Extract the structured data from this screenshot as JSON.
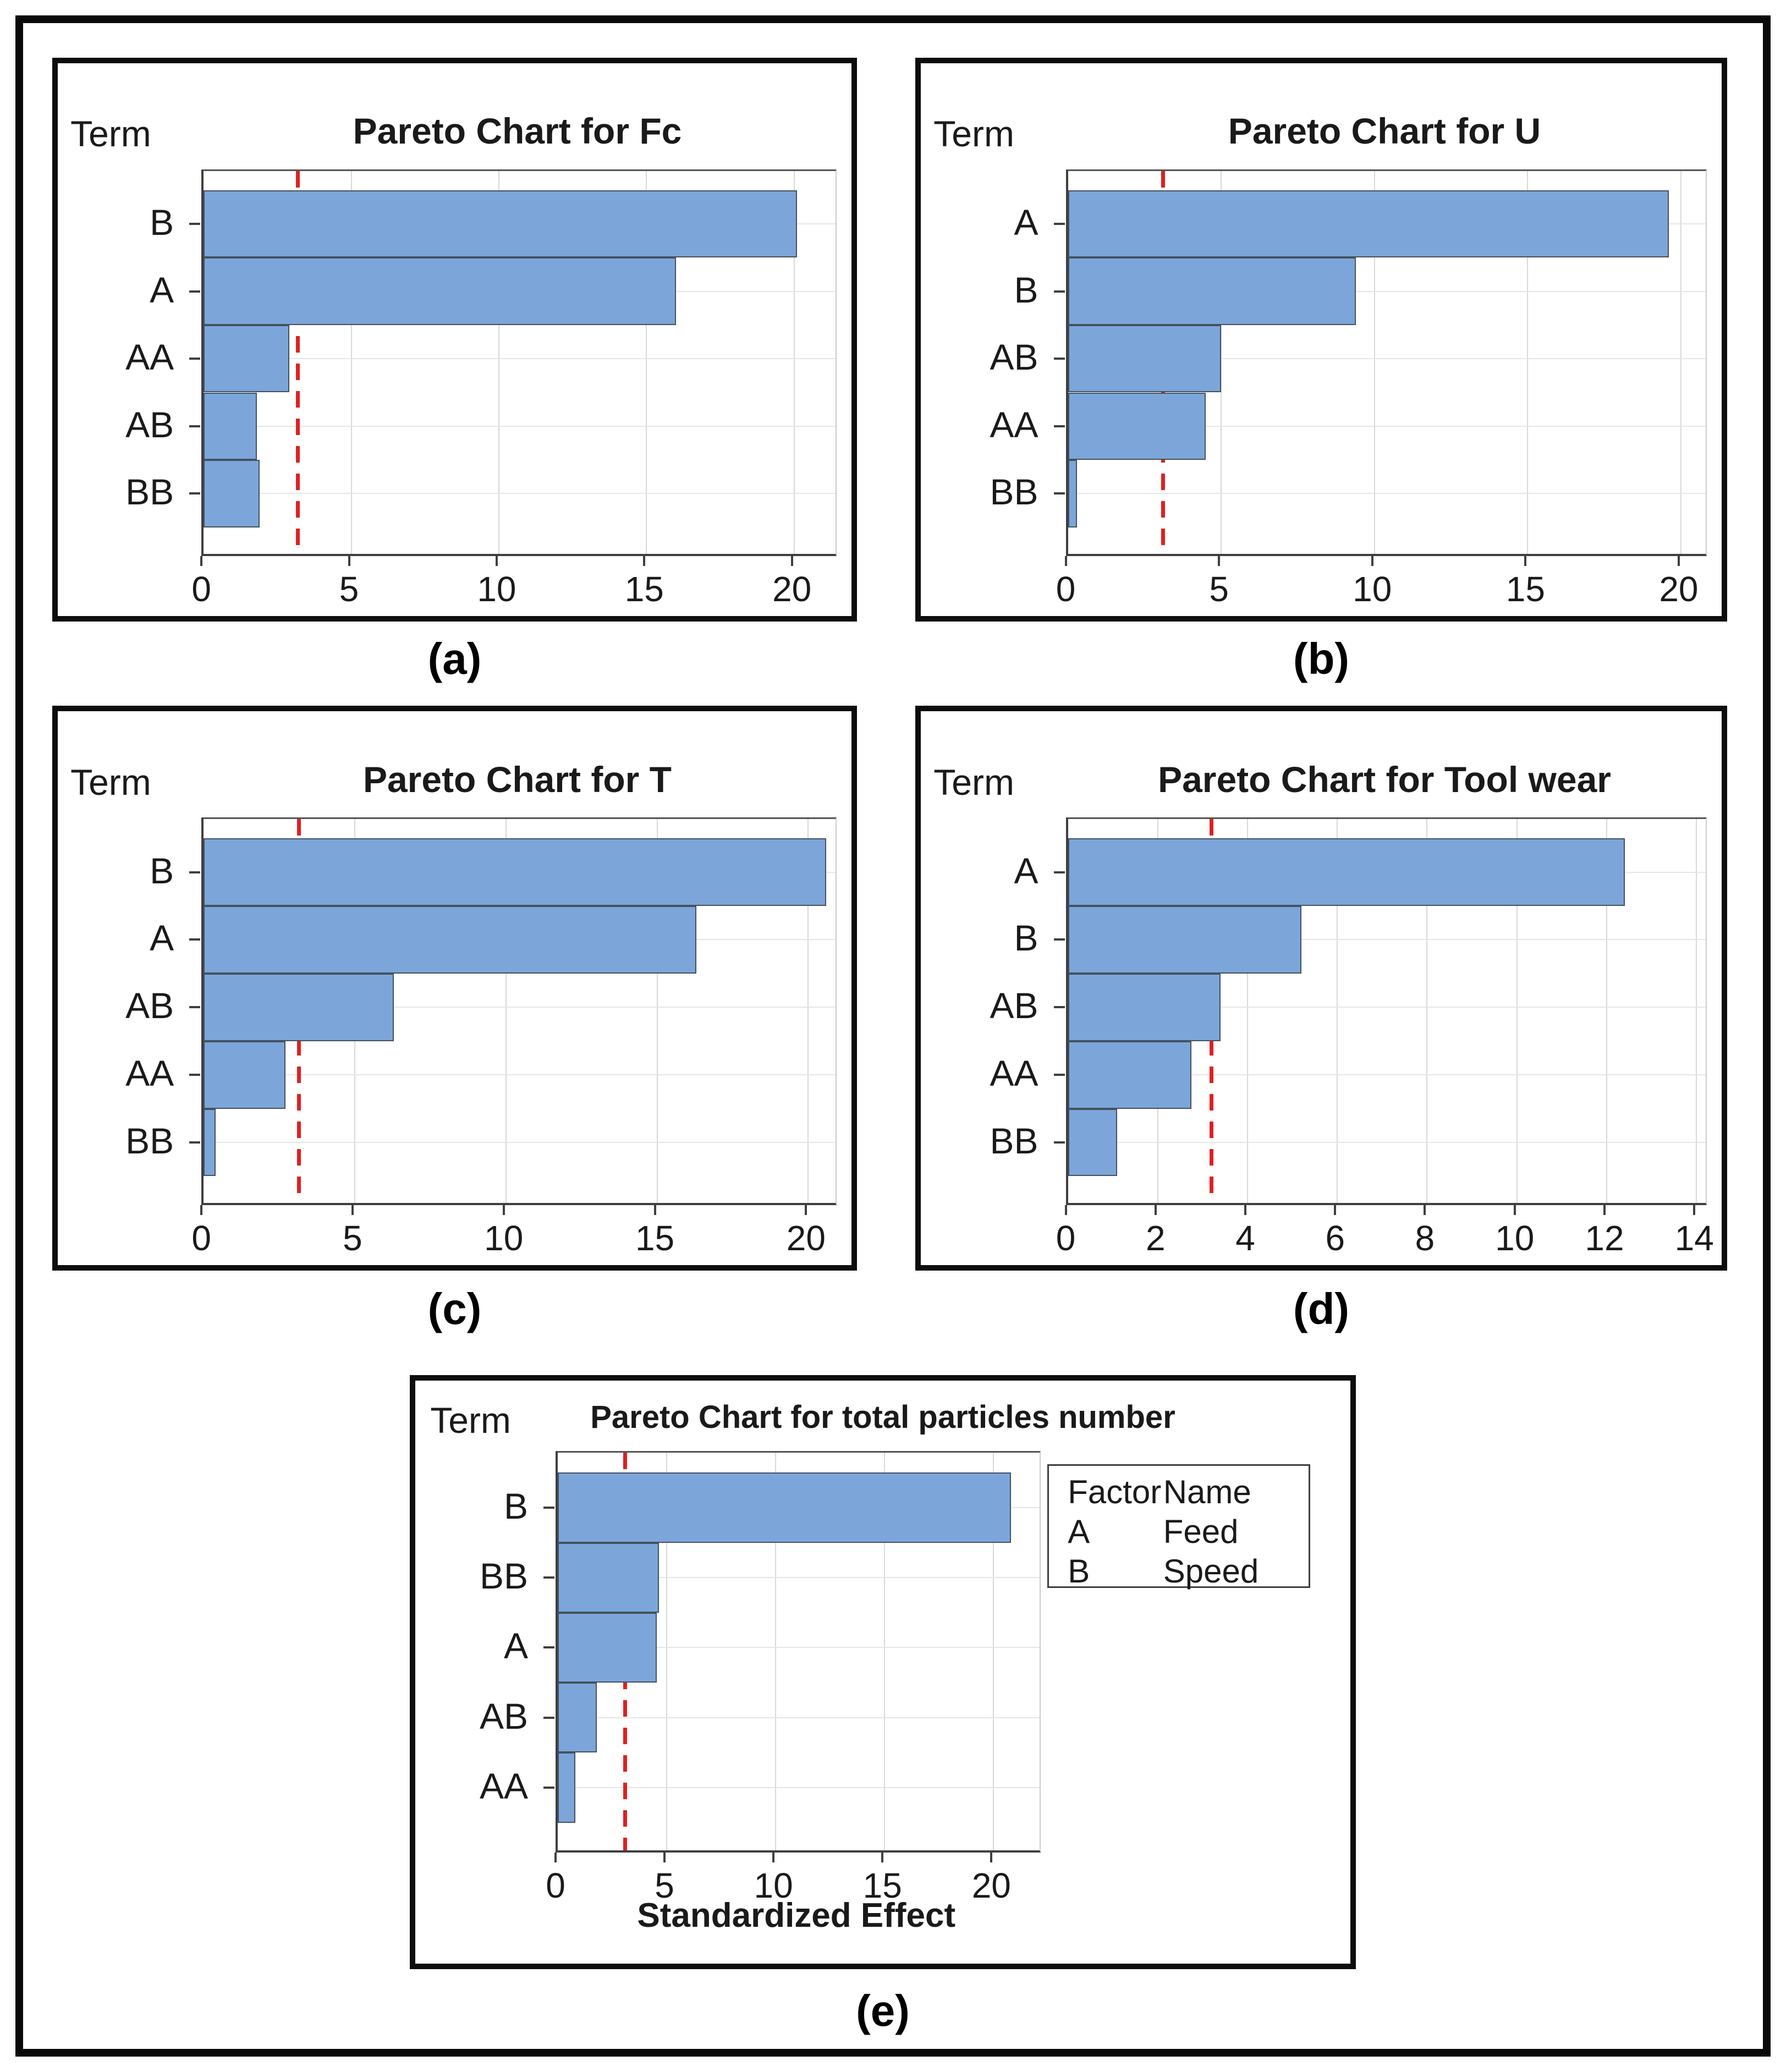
{
  "figure": {
    "description": "Five Pareto charts of standardized effects",
    "term_axis_label": "Term",
    "x_axis_title": "Standardized Effect"
  },
  "colors": {
    "bar_fill": "#7CA6DA",
    "bar_border": "#44515F",
    "reference_line": "#E02020",
    "gridline_vertical": "#D8D8D8",
    "gridline_horizontal": "#E6E6E6",
    "axis": "#3F3F3F",
    "plot_border_top": "#555555",
    "plot_border_right": "#CCCCCC",
    "frame": "#0D0D0D",
    "text": "#1A1A1A"
  },
  "chart_data": [
    {
      "type": "bar",
      "orientation": "horizontal",
      "caption": "(a)",
      "title": "Pareto Chart for Fc",
      "term_axis_label": "Term",
      "categories": [
        "B",
        "A",
        "AA",
        "AB",
        "BB"
      ],
      "values": [
        20.1,
        16.0,
        2.9,
        1.8,
        1.9
      ],
      "reference_line": 3.2,
      "x_ticks": [
        0,
        5,
        10,
        15,
        20
      ],
      "xlim": [
        0,
        21.4
      ],
      "xlabel": "",
      "grid": true
    },
    {
      "type": "bar",
      "orientation": "horizontal",
      "caption": "(b)",
      "title": "Pareto Chart for U",
      "term_axis_label": "Term",
      "categories": [
        "A",
        "B",
        "AB",
        "AA",
        "BB"
      ],
      "values": [
        19.6,
        9.4,
        5.0,
        4.5,
        0.3
      ],
      "reference_line": 3.1,
      "x_ticks": [
        0,
        5,
        10,
        15,
        20
      ],
      "xlim": [
        0,
        20.8
      ],
      "xlabel": "",
      "grid": true
    },
    {
      "type": "bar",
      "orientation": "horizontal",
      "caption": "(c)",
      "title": "Pareto Chart for T",
      "term_axis_label": "Term",
      "categories": [
        "B",
        "A",
        "AB",
        "AA",
        "BB"
      ],
      "values": [
        20.6,
        16.3,
        6.3,
        2.7,
        0.4
      ],
      "reference_line": 3.15,
      "x_ticks": [
        0,
        5,
        10,
        15,
        20
      ],
      "xlim": [
        0,
        20.9
      ],
      "xlabel": "",
      "grid": true
    },
    {
      "type": "bar",
      "orientation": "horizontal",
      "caption": "(d)",
      "title": "Pareto Chart for Tool wear",
      "term_axis_label": "Term",
      "categories": [
        "A",
        "B",
        "AB",
        "AA",
        "BB"
      ],
      "values": [
        12.4,
        5.2,
        3.4,
        2.75,
        1.1
      ],
      "reference_line": 3.2,
      "x_ticks": [
        0,
        2,
        4,
        6,
        8,
        10,
        12,
        14
      ],
      "xlim": [
        0,
        14.2
      ],
      "xlabel": "",
      "grid": true
    },
    {
      "type": "bar",
      "orientation": "horizontal",
      "caption": "(e)",
      "title": "Pareto Chart for total particles number",
      "term_axis_label": "Term",
      "categories": [
        "B",
        "BB",
        "A",
        "AB",
        "AA"
      ],
      "values": [
        20.8,
        4.65,
        4.55,
        1.8,
        0.8
      ],
      "reference_line": 3.1,
      "x_ticks": [
        0,
        5,
        10,
        15,
        20
      ],
      "xlim": [
        0,
        22.1
      ],
      "xlabel": "Standardized Effect",
      "grid": true,
      "legend": {
        "headers": [
          "Factor",
          "Name"
        ],
        "rows": [
          [
            "A",
            "Feed"
          ],
          [
            "B",
            "Speed"
          ]
        ],
        "position": "right-top"
      }
    }
  ]
}
